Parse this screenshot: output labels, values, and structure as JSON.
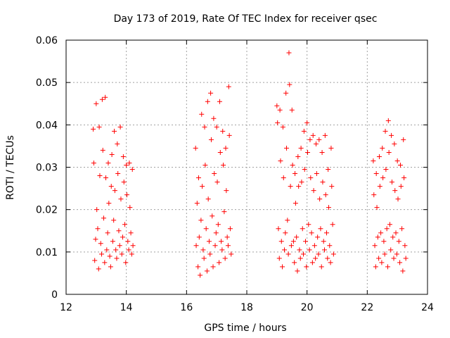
{
  "chart_data": {
    "type": "scatter",
    "title": "Day 173 of 2019, Rate Of TEC Index for receiver qsec",
    "xlabel": "GPS time / hours",
    "ylabel": "ROTI / TECUs",
    "xlim": [
      12,
      24
    ],
    "ylim": [
      0,
      0.06
    ],
    "x_ticks": [
      12,
      14,
      16,
      18,
      20,
      22,
      24
    ],
    "x_tick_labels": [
      "12",
      "14",
      "16",
      "18",
      "20",
      "22",
      "24"
    ],
    "y_ticks": [
      0,
      0.01,
      0.02,
      0.03,
      0.04,
      0.05,
      0.06
    ],
    "y_tick_labels": [
      "0",
      "0.01",
      "0.02",
      "0.03",
      "0.04",
      "0.05",
      "0.06"
    ],
    "grid": true,
    "marker": "+",
    "marker_color": "#ff0000",
    "series": [
      {
        "name": "ROTI",
        "points": [
          [
            12.9,
            0.039
          ],
          [
            12.92,
            0.031
          ],
          [
            12.95,
            0.008
          ],
          [
            12.98,
            0.013
          ],
          [
            13.0,
            0.045
          ],
          [
            13.02,
            0.02
          ],
          [
            13.05,
            0.0155
          ],
          [
            13.08,
            0.006
          ],
          [
            13.1,
            0.0395
          ],
          [
            13.12,
            0.028
          ],
          [
            13.15,
            0.012
          ],
          [
            13.18,
            0.0095
          ],
          [
            13.2,
            0.046
          ],
          [
            13.22,
            0.034
          ],
          [
            13.25,
            0.018
          ],
          [
            13.28,
            0.0075
          ],
          [
            13.3,
            0.0465
          ],
          [
            13.32,
            0.0275
          ],
          [
            13.35,
            0.0105
          ],
          [
            13.38,
            0.0145
          ],
          [
            13.4,
            0.031
          ],
          [
            13.42,
            0.0215
          ],
          [
            13.45,
            0.009
          ],
          [
            13.48,
            0.0065
          ],
          [
            13.5,
            0.0255
          ],
          [
            13.52,
            0.033
          ],
          [
            13.55,
            0.0125
          ],
          [
            13.58,
            0.0175
          ],
          [
            13.6,
            0.0385
          ],
          [
            13.62,
            0.0245
          ],
          [
            13.65,
            0.0105
          ],
          [
            13.68,
            0.0085
          ],
          [
            13.7,
            0.0355
          ],
          [
            13.72,
            0.0285
          ],
          [
            13.75,
            0.015
          ],
          [
            13.78,
            0.0115
          ],
          [
            13.8,
            0.0395
          ],
          [
            13.82,
            0.0225
          ],
          [
            13.85,
            0.0095
          ],
          [
            13.88,
            0.0135
          ],
          [
            13.9,
            0.0325
          ],
          [
            13.92,
            0.0265
          ],
          [
            13.95,
            0.0165
          ],
          [
            13.98,
            0.0075
          ],
          [
            14.0,
            0.0305
          ],
          [
            14.02,
            0.0235
          ],
          [
            14.05,
            0.0125
          ],
          [
            14.08,
            0.0105
          ],
          [
            14.1,
            0.031
          ],
          [
            14.12,
            0.0205
          ],
          [
            14.15,
            0.0145
          ],
          [
            14.18,
            0.0095
          ],
          [
            14.2,
            0.0295
          ],
          [
            14.22,
            0.0115
          ],
          [
            16.3,
            0.0345
          ],
          [
            16.32,
            0.0115
          ],
          [
            16.35,
            0.0215
          ],
          [
            16.38,
            0.0065
          ],
          [
            16.4,
            0.0275
          ],
          [
            16.42,
            0.0135
          ],
          [
            16.45,
            0.0045
          ],
          [
            16.48,
            0.0175
          ],
          [
            16.5,
            0.0425
          ],
          [
            16.52,
            0.0255
          ],
          [
            16.55,
            0.0105
          ],
          [
            16.58,
            0.0085
          ],
          [
            16.6,
            0.0395
          ],
          [
            16.62,
            0.0305
          ],
          [
            16.65,
            0.0155
          ],
          [
            16.68,
            0.0055
          ],
          [
            16.7,
            0.0455
          ],
          [
            16.72,
            0.0225
          ],
          [
            16.75,
            0.0125
          ],
          [
            16.78,
            0.0095
          ],
          [
            16.8,
            0.0475
          ],
          [
            16.82,
            0.0365
          ],
          [
            16.85,
            0.0185
          ],
          [
            16.88,
            0.0065
          ],
          [
            16.9,
            0.0415
          ],
          [
            16.92,
            0.0285
          ],
          [
            16.95,
            0.0115
          ],
          [
            16.98,
            0.0145
          ],
          [
            17.0,
            0.0395
          ],
          [
            17.02,
            0.0265
          ],
          [
            17.05,
            0.0165
          ],
          [
            17.08,
            0.0075
          ],
          [
            17.1,
            0.0455
          ],
          [
            17.12,
            0.0335
          ],
          [
            17.15,
            0.0125
          ],
          [
            17.18,
            0.0105
          ],
          [
            17.2,
            0.0385
          ],
          [
            17.22,
            0.0305
          ],
          [
            17.25,
            0.0195
          ],
          [
            17.28,
            0.0085
          ],
          [
            17.3,
            0.0345
          ],
          [
            17.32,
            0.0245
          ],
          [
            17.35,
            0.0135
          ],
          [
            17.38,
            0.0115
          ],
          [
            17.4,
            0.049
          ],
          [
            17.42,
            0.0375
          ],
          [
            17.45,
            0.0155
          ],
          [
            17.48,
            0.0095
          ],
          [
            19.0,
            0.0445
          ],
          [
            19.02,
            0.0405
          ],
          [
            19.05,
            0.0155
          ],
          [
            19.08,
            0.0085
          ],
          [
            19.1,
            0.0435
          ],
          [
            19.12,
            0.0315
          ],
          [
            19.15,
            0.0125
          ],
          [
            19.18,
            0.0065
          ],
          [
            19.2,
            0.0395
          ],
          [
            19.22,
            0.0275
          ],
          [
            19.25,
            0.0105
          ],
          [
            19.28,
            0.0145
          ],
          [
            19.3,
            0.0475
          ],
          [
            19.32,
            0.0345
          ],
          [
            19.35,
            0.0175
          ],
          [
            19.38,
            0.0095
          ],
          [
            19.4,
            0.057
          ],
          [
            19.42,
            0.0495
          ],
          [
            19.45,
            0.0255
          ],
          [
            19.48,
            0.0115
          ],
          [
            19.5,
            0.0435
          ],
          [
            19.52,
            0.0305
          ],
          [
            19.55,
            0.0125
          ],
          [
            19.58,
            0.0075
          ],
          [
            19.6,
            0.0285
          ],
          [
            19.62,
            0.0215
          ],
          [
            19.65,
            0.0135
          ],
          [
            19.68,
            0.0055
          ],
          [
            19.7,
            0.0325
          ],
          [
            19.72,
            0.0255
          ],
          [
            19.75,
            0.0105
          ],
          [
            19.78,
            0.0085
          ],
          [
            19.8,
            0.0345
          ],
          [
            19.82,
            0.0265
          ],
          [
            19.85,
            0.0155
          ],
          [
            19.88,
            0.0095
          ],
          [
            19.9,
            0.0385
          ],
          [
            19.92,
            0.0295
          ],
          [
            19.95,
            0.0125
          ],
          [
            19.98,
            0.0065
          ],
          [
            20.0,
            0.0405
          ],
          [
            20.02,
            0.0335
          ],
          [
            20.05,
            0.0165
          ],
          [
            20.08,
            0.0105
          ],
          [
            20.1,
            0.0365
          ],
          [
            20.12,
            0.0275
          ],
          [
            20.15,
            0.0145
          ],
          [
            20.18,
            0.0075
          ],
          [
            20.2,
            0.0375
          ],
          [
            20.22,
            0.0245
          ],
          [
            20.25,
            0.0115
          ],
          [
            20.28,
            0.0085
          ],
          [
            20.3,
            0.0355
          ],
          [
            20.32,
            0.0285
          ],
          [
            20.35,
            0.0135
          ],
          [
            20.38,
            0.0095
          ],
          [
            20.4,
            0.0365
          ],
          [
            20.42,
            0.0225
          ],
          [
            20.45,
            0.0155
          ],
          [
            20.48,
            0.0065
          ],
          [
            20.5,
            0.0335
          ],
          [
            20.52,
            0.0265
          ],
          [
            20.55,
            0.0125
          ],
          [
            20.58,
            0.0105
          ],
          [
            20.6,
            0.0375
          ],
          [
            20.62,
            0.0235
          ],
          [
            20.65,
            0.0145
          ],
          [
            20.68,
            0.0085
          ],
          [
            20.7,
            0.0295
          ],
          [
            20.72,
            0.0205
          ],
          [
            20.75,
            0.0115
          ],
          [
            20.78,
            0.0075
          ],
          [
            20.8,
            0.0345
          ],
          [
            20.82,
            0.0255
          ],
          [
            20.85,
            0.0165
          ],
          [
            20.88,
            0.0095
          ],
          [
            22.2,
            0.0315
          ],
          [
            22.22,
            0.0235
          ],
          [
            22.25,
            0.0115
          ],
          [
            22.28,
            0.0065
          ],
          [
            22.3,
            0.0285
          ],
          [
            22.32,
            0.0205
          ],
          [
            22.35,
            0.0135
          ],
          [
            22.38,
            0.0085
          ],
          [
            22.4,
            0.0325
          ],
          [
            22.42,
            0.0255
          ],
          [
            22.45,
            0.0145
          ],
          [
            22.48,
            0.0075
          ],
          [
            22.5,
            0.0345
          ],
          [
            22.52,
            0.0275
          ],
          [
            22.55,
            0.0125
          ],
          [
            22.58,
            0.0095
          ],
          [
            22.6,
            0.0385
          ],
          [
            22.62,
            0.0295
          ],
          [
            22.65,
            0.0155
          ],
          [
            22.68,
            0.0065
          ],
          [
            22.7,
            0.041
          ],
          [
            22.72,
            0.0335
          ],
          [
            22.75,
            0.0165
          ],
          [
            22.78,
            0.0105
          ],
          [
            22.8,
            0.0375
          ],
          [
            22.82,
            0.0265
          ],
          [
            22.85,
            0.0135
          ],
          [
            22.88,
            0.0085
          ],
          [
            22.9,
            0.0355
          ],
          [
            22.92,
            0.0245
          ],
          [
            22.95,
            0.0145
          ],
          [
            22.98,
            0.0095
          ],
          [
            23.0,
            0.0315
          ],
          [
            23.02,
            0.0225
          ],
          [
            23.05,
            0.0125
          ],
          [
            23.08,
            0.0075
          ],
          [
            23.1,
            0.0305
          ],
          [
            23.12,
            0.0255
          ],
          [
            23.15,
            0.0155
          ],
          [
            23.18,
            0.0055
          ],
          [
            23.2,
            0.0365
          ],
          [
            23.22,
            0.0275
          ],
          [
            23.25,
            0.0115
          ],
          [
            23.28,
            0.0085
          ]
        ]
      }
    ]
  }
}
